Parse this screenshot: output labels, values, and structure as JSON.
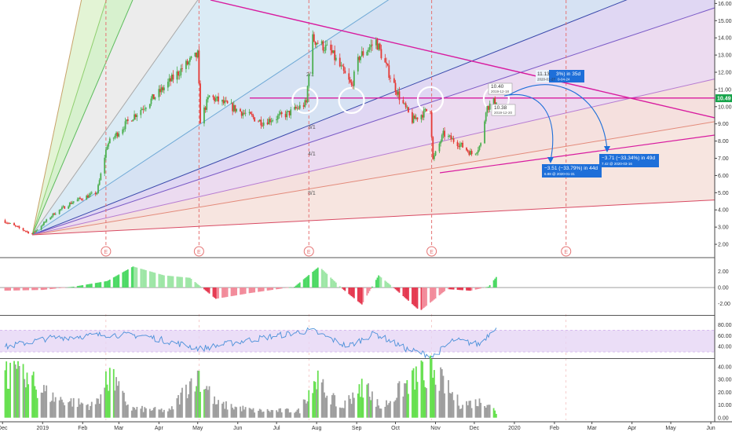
{
  "chart_data": {
    "type": "candlestick",
    "title": "",
    "x_tick_labels": [
      "Dec",
      "2019",
      "Feb",
      "Mar",
      "Apr",
      "May",
      "Jun",
      "Jul",
      "Aug",
      "Sep",
      "Oct",
      "Nov",
      "Dec",
      "2020",
      "Feb",
      "Mar",
      "Apr",
      "May",
      "Jun"
    ],
    "main_panel": {
      "y_ticks": [
        "16.00",
        "15.00",
        "14.00",
        "13.00",
        "12.00",
        "11.00",
        "10.00",
        "9.00",
        "8.00",
        "7.00",
        "6.00",
        "5.00",
        "4.00",
        "3.00",
        "2.00"
      ],
      "ylim": [
        1.5,
        16.2
      ],
      "last_price": "10.49",
      "colors": {
        "up": "#4caf50",
        "down": "#e53935",
        "trendline": "#d81b9f",
        "arrow": "#1e6fd9",
        "earnings": "#e57373"
      },
      "price_anchors": [
        {
          "date": "2018-12-01",
          "price": 3.4
        },
        {
          "date": "2018-12-12",
          "price": 3.0
        },
        {
          "date": "2018-12-24",
          "price": 2.6
        },
        {
          "date": "2019-01-10",
          "price": 3.8
        },
        {
          "date": "2019-01-25",
          "price": 4.5
        },
        {
          "date": "2019-02-12",
          "price": 5.0
        },
        {
          "date": "2019-02-20",
          "price": 7.8
        },
        {
          "date": "2019-03-10",
          "price": 9.3
        },
        {
          "date": "2019-04-01",
          "price": 10.8
        },
        {
          "date": "2019-04-20",
          "price": 12.3
        },
        {
          "date": "2019-05-01",
          "price": 13.0
        },
        {
          "date": "2019-05-03",
          "price": 9.2
        },
        {
          "date": "2019-05-10",
          "price": 10.6
        },
        {
          "date": "2019-06-01",
          "price": 9.8
        },
        {
          "date": "2019-06-20",
          "price": 9.1
        },
        {
          "date": "2019-07-10",
          "price": 9.6
        },
        {
          "date": "2019-07-24",
          "price": 10.2
        },
        {
          "date": "2019-07-28",
          "price": 14.0
        },
        {
          "date": "2019-08-12",
          "price": 13.2
        },
        {
          "date": "2019-08-28",
          "price": 11.2
        },
        {
          "date": "2019-09-03",
          "price": 12.9
        },
        {
          "date": "2019-09-16",
          "price": 13.8
        },
        {
          "date": "2019-09-24",
          "price": 12.3
        },
        {
          "date": "2019-10-05",
          "price": 10.4
        },
        {
          "date": "2019-10-14",
          "price": 9.2
        },
        {
          "date": "2019-10-28",
          "price": 9.9
        },
        {
          "date": "2019-10-30",
          "price": 6.9
        },
        {
          "date": "2019-11-07",
          "price": 8.4
        },
        {
          "date": "2019-11-20",
          "price": 7.8
        },
        {
          "date": "2019-11-30",
          "price": 7.2
        },
        {
          "date": "2019-12-07",
          "price": 7.9
        },
        {
          "date": "2019-12-10",
          "price": 9.9
        },
        {
          "date": "2019-12-18",
          "price": 10.4
        }
      ],
      "earnings_marker": "E",
      "earnings_dates": [
        "2019-02-19",
        "2019-05-02",
        "2019-07-26",
        "2019-10-29",
        "2020-02-10"
      ],
      "fan_labels": [
        "2/1",
        "3/1",
        "4/1",
        "8/1"
      ],
      "resistance_level": 10.5,
      "annotations": [
        {
          "label": "10.40",
          "sub": "2019-12-18"
        },
        {
          "label": "10.38",
          "sub": "2019-12-20"
        },
        {
          "label": "11.13",
          "tail": "3%) in 35d",
          "sub": "2020-01-27",
          "sub_tail": "0-04-24"
        },
        {
          "label": "−3.51 (−33.79%) in 44d",
          "sub": "6.88 @ 2020-01-31"
        },
        {
          "label": "−3.71 (−33.34%) in 49d",
          "sub": "7.42 @ 2020-03-16"
        }
      ]
    },
    "macd_panel": {
      "y_ticks": [
        "2.00",
        "0.00",
        "-2.00"
      ],
      "ylim": [
        -3.3,
        3.5
      ],
      "anchors": [
        {
          "date": "2018-12-01",
          "value": -0.4
        },
        {
          "date": "2019-01-01",
          "value": -0.3
        },
        {
          "date": "2019-01-25",
          "value": 0.1
        },
        {
          "date": "2019-02-20",
          "value": 0.8
        },
        {
          "date": "2019-03-12",
          "value": 2.6
        },
        {
          "date": "2019-04-05",
          "value": 1.5
        },
        {
          "date": "2019-04-25",
          "value": 1.2
        },
        {
          "date": "2019-05-15",
          "value": -1.4
        },
        {
          "date": "2019-06-10",
          "value": -0.7
        },
        {
          "date": "2019-07-15",
          "value": 0.1
        },
        {
          "date": "2019-08-03",
          "value": 2.6
        },
        {
          "date": "2019-08-22",
          "value": -0.3
        },
        {
          "date": "2019-09-05",
          "value": -2.1
        },
        {
          "date": "2019-09-18",
          "value": 1.5
        },
        {
          "date": "2019-09-28",
          "value": 0.2
        },
        {
          "date": "2019-10-20",
          "value": -2.9
        },
        {
          "date": "2019-11-10",
          "value": -0.2
        },
        {
          "date": "2019-11-28",
          "value": -0.4
        },
        {
          "date": "2019-12-12",
          "value": 0.1
        },
        {
          "date": "2019-12-18",
          "value": 1.3
        }
      ]
    },
    "rsi_panel": {
      "y_ticks": [
        "80.00",
        "60.00",
        "40.00"
      ],
      "ylim": [
        20,
        95
      ],
      "band": [
        30,
        70
      ],
      "anchors": [
        {
          "date": "2018-12-01",
          "value": 38
        },
        {
          "date": "2019-01-05",
          "value": 55
        },
        {
          "date": "2019-02-20",
          "value": 62
        },
        {
          "date": "2019-03-20",
          "value": 60
        },
        {
          "date": "2019-05-03",
          "value": 36
        },
        {
          "date": "2019-06-05",
          "value": 50
        },
        {
          "date": "2019-07-28",
          "value": 70
        },
        {
          "date": "2019-08-25",
          "value": 40
        },
        {
          "date": "2019-09-15",
          "value": 64
        },
        {
          "date": "2019-10-10",
          "value": 35
        },
        {
          "date": "2019-10-30",
          "value": 22
        },
        {
          "date": "2019-11-15",
          "value": 52
        },
        {
          "date": "2019-12-05",
          "value": 44
        },
        {
          "date": "2019-12-18",
          "value": 78
        }
      ]
    },
    "volume_panel": {
      "y_ticks": [
        "40.00",
        "30.00",
        "20.00",
        "10.00",
        "0.00"
      ],
      "ylim": [
        -2,
        46
      ],
      "anchors": [
        {
          "date": "2018-12-01",
          "value": 40
        },
        {
          "date": "2018-12-20",
          "value": 33
        },
        {
          "date": "2019-01-10",
          "value": 17
        },
        {
          "date": "2019-02-10",
          "value": 10
        },
        {
          "date": "2019-02-22",
          "value": 36
        },
        {
          "date": "2019-03-10",
          "value": 8
        },
        {
          "date": "2019-04-10",
          "value": 6
        },
        {
          "date": "2019-05-01",
          "value": 40
        },
        {
          "date": "2019-05-15",
          "value": 12
        },
        {
          "date": "2019-06-15",
          "value": 6
        },
        {
          "date": "2019-07-20",
          "value": 6
        },
        {
          "date": "2019-07-29",
          "value": 35
        },
        {
          "date": "2019-08-20",
          "value": 8
        },
        {
          "date": "2019-09-05",
          "value": 30
        },
        {
          "date": "2019-09-20",
          "value": 8
        },
        {
          "date": "2019-10-15",
          "value": 35
        },
        {
          "date": "2019-10-30",
          "value": 40
        },
        {
          "date": "2019-11-20",
          "value": 12
        },
        {
          "date": "2019-12-12",
          "value": 14
        },
        {
          "date": "2019-12-18",
          "value": 4
        }
      ]
    }
  }
}
